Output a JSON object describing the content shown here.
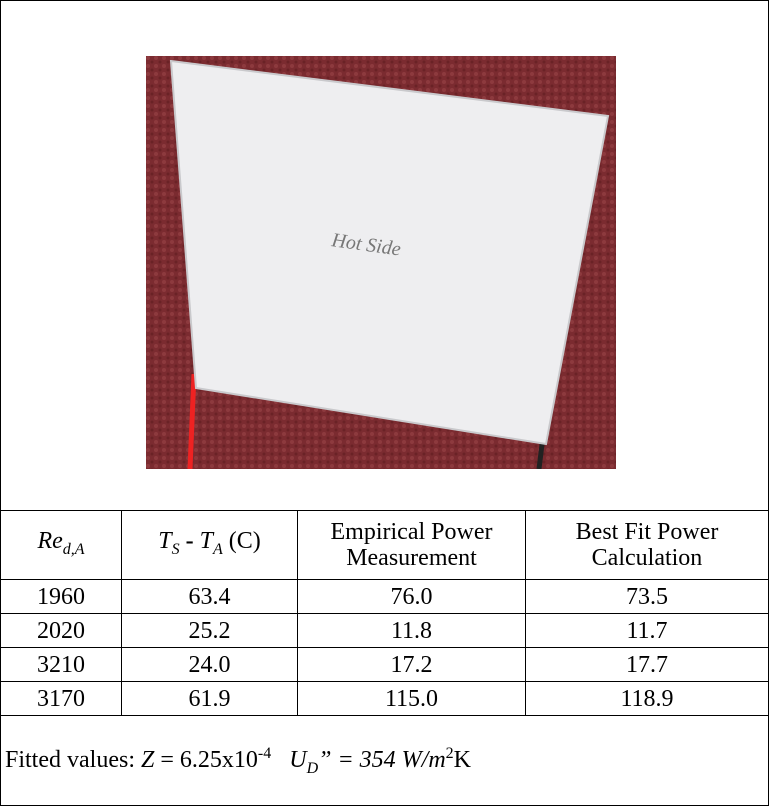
{
  "photo": {
    "label": "Hot Side"
  },
  "table": {
    "columns": [
      [
        "Re",
        "d,A"
      ],
      [
        "T",
        "S",
        " - ",
        "T",
        "A",
        " (C)"
      ],
      [
        "Empirical Power",
        "Measurement"
      ],
      [
        "Best Fit Power",
        "Calculation"
      ]
    ],
    "rows": [
      [
        "1960",
        "63.4",
        "76.0",
        "73.5"
      ],
      [
        "2020",
        "25.2",
        "11.8",
        "11.7"
      ],
      [
        "3210",
        "24.0",
        "17.2",
        "17.7"
      ],
      [
        "3170",
        "61.9",
        "115.0",
        "118.9"
      ]
    ],
    "footer": [
      "Fitted values: ",
      "Z",
      " = 6.25x10",
      "-4",
      "U",
      "D",
      "” = 354 W/m",
      "2",
      "K"
    ]
  }
}
